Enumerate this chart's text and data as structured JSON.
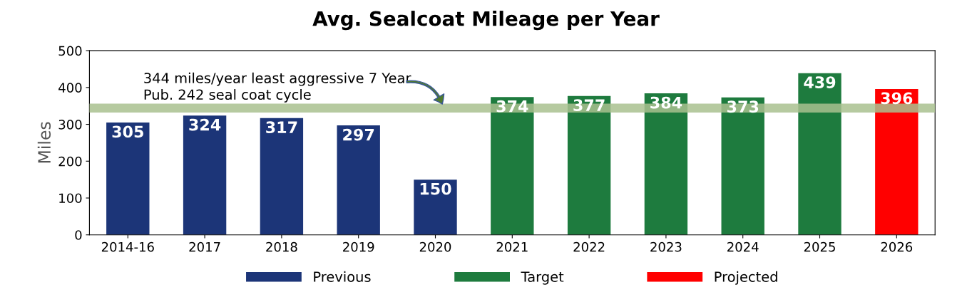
{
  "chart_data": {
    "type": "bar",
    "title": "Avg. Sealcoat Mileage per Year",
    "ylabel": "Miles",
    "categories": [
      "2014-16",
      "2017",
      "2018",
      "2019",
      "2020",
      "2021",
      "2022",
      "2023",
      "2024",
      "2025",
      "2026"
    ],
    "series": [
      {
        "name": "Previous",
        "color": "#1c3578",
        "values": [
          305,
          324,
          317,
          297,
          150,
          null,
          null,
          null,
          null,
          null,
          null
        ]
      },
      {
        "name": "Target",
        "color": "#1e7b3e",
        "values": [
          null,
          null,
          null,
          null,
          null,
          374,
          377,
          384,
          373,
          439,
          null
        ]
      },
      {
        "name": "Projected",
        "color": "#ff0000",
        "values": [
          null,
          null,
          null,
          null,
          null,
          null,
          null,
          null,
          null,
          null,
          396
        ]
      }
    ],
    "ylim": [
      0,
      500
    ],
    "yticks": [
      0,
      100,
      200,
      300,
      400,
      500
    ],
    "ref_lines": [
      {
        "axis": "y",
        "value": 344,
        "label": "344 miles/year least aggressive 7 Year\nPub. 242 seal coat cycle",
        "color": "#a9c18f"
      }
    ],
    "data_labels": true,
    "grid": false,
    "legend": "bottom"
  }
}
